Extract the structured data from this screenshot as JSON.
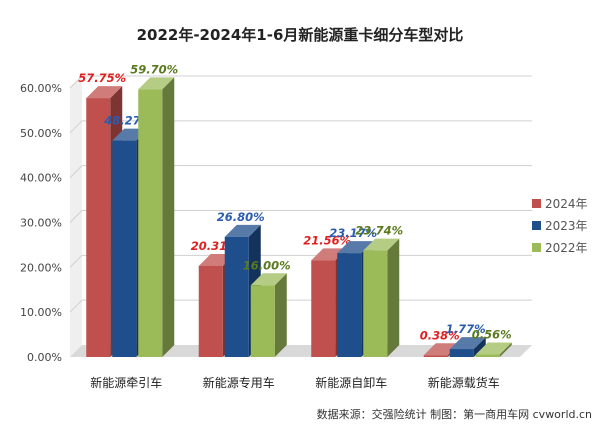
{
  "chart_data": {
    "type": "bar",
    "title": "2022年-2024年1-6月新能源重卡细分车型对比",
    "categories": [
      "新能源牵引车",
      "新能源专用车",
      "新能源自卸车",
      "新能源载货车"
    ],
    "series": [
      {
        "name": "2024年",
        "values": [
          57.75,
          20.31,
          21.56,
          0.38
        ],
        "labels": [
          "57.75%",
          "20.31%",
          "21.56%",
          "0.38%"
        ],
        "color": "#c0504d",
        "label_color": "#e02020"
      },
      {
        "name": "2023年",
        "values": [
          48.27,
          26.8,
          23.17,
          1.77
        ],
        "labels": [
          "48.27%",
          "26.80%",
          "23.17%",
          "1.77%"
        ],
        "color": "#1f4e8c",
        "label_color": "#2a5db0"
      },
      {
        "name": "2022年",
        "values": [
          59.7,
          16.0,
          23.74,
          0.56
        ],
        "labels": [
          "59.70%",
          "16.00%",
          "23.74%",
          "0.56%"
        ],
        "color": "#9bbb59",
        "label_color": "#5a7a1e"
      }
    ],
    "ylim": [
      0,
      60
    ],
    "yticks": [
      "0.00%",
      "10.00%",
      "20.00%",
      "30.00%",
      "40.00%",
      "50.00%",
      "60.00%"
    ],
    "grid": true,
    "legend_position": "right"
  },
  "source_text": "数据来源：交强险统计 制图：第一商用车网 cvworld.cn"
}
